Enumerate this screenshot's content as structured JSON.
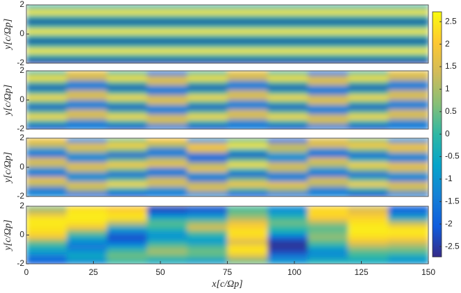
{
  "chart_data": [
    {
      "type": "heatmap",
      "ylabel": "y[c/Ωp]",
      "xlim": [
        0,
        150
      ],
      "ylim": [
        -2,
        2
      ],
      "yticks": [
        -2,
        0,
        2
      ],
      "xbins": [
        0,
        15,
        30,
        45,
        60,
        75,
        90,
        105,
        120,
        135,
        150
      ],
      "ybins": [
        2,
        1.667,
        1.333,
        1,
        0.667,
        0.333,
        0,
        -0.333,
        -0.667,
        -1,
        -1.333,
        -1.667,
        -2
      ],
      "z": [
        [
          0,
          0,
          0,
          0,
          0,
          0,
          0,
          0,
          0,
          0
        ],
        [
          2.5,
          2.5,
          2.5,
          2.5,
          2.5,
          2.5,
          2.5,
          2.5,
          2.5,
          2.5
        ],
        [
          0,
          0,
          0,
          0,
          0,
          0,
          0,
          0,
          0,
          0
        ],
        [
          -2.5,
          -2.5,
          -2.5,
          -2.5,
          -2.5,
          -2.5,
          -2.5,
          -2.5,
          -2.5,
          -2.5
        ],
        [
          0,
          0,
          0,
          0,
          0,
          0,
          0,
          0,
          0,
          0
        ],
        [
          2.5,
          2.5,
          2.5,
          2.5,
          2.5,
          2.5,
          2.5,
          2.5,
          2.5,
          2.5
        ],
        [
          0,
          0,
          0,
          0,
          0,
          0,
          0,
          0,
          0,
          0
        ],
        [
          -2.5,
          -2.5,
          -2.5,
          -2.5,
          -2.5,
          -2.5,
          -2.5,
          -2.5,
          -2.5,
          -2.5
        ],
        [
          0,
          0,
          0,
          0,
          0,
          0,
          0,
          0,
          0,
          0
        ],
        [
          2.5,
          2.5,
          2.5,
          2.5,
          2.5,
          2.5,
          2.5,
          2.5,
          2.5,
          2.5
        ],
        [
          0,
          0,
          0,
          0,
          0,
          0,
          0,
          0,
          0,
          0
        ],
        [
          -2.5,
          -2.5,
          -2.5,
          -2.5,
          -2.5,
          -2.5,
          -2.5,
          -2.5,
          -2.5,
          -2.5
        ]
      ]
    },
    {
      "type": "heatmap",
      "ylabel": "y[c/Ωp]",
      "xlim": [
        0,
        150
      ],
      "ylim": [
        -2,
        2
      ],
      "yticks": [
        -2,
        0,
        2
      ],
      "xbins": [
        0,
        15,
        30,
        45,
        60,
        75,
        90,
        105,
        120,
        135,
        150
      ],
      "ybins": [
        2,
        1.667,
        1.333,
        1,
        0.667,
        0.333,
        0,
        -0.333,
        -0.667,
        -1,
        -1.333,
        -1.667,
        -2
      ],
      "z": [
        [
          0.3,
          1.6,
          0.3,
          -1.4,
          0.3,
          1.6,
          0.3,
          -1.4,
          0.3,
          1.6
        ],
        [
          2.4,
          1.4,
          2.4,
          1.5,
          2.4,
          1.4,
          2.4,
          1.5,
          2.4,
          1.4
        ],
        [
          0.2,
          -1.3,
          0.2,
          1.4,
          0.2,
          -1.3,
          0.2,
          1.4,
          0.2,
          -1.3
        ],
        [
          -2.3,
          -1.5,
          -2.3,
          -1.4,
          -2.3,
          -1.5,
          -2.3,
          -1.4,
          -2.3,
          -1.5
        ],
        [
          0.1,
          1.4,
          0.1,
          -1.5,
          0.1,
          1.4,
          0.1,
          -1.5,
          0.1,
          1.4
        ],
        [
          2.3,
          1.5,
          2.3,
          1.4,
          2.3,
          1.5,
          2.3,
          1.4,
          2.3,
          1.5
        ],
        [
          0.2,
          -1.3,
          0.2,
          1.5,
          0.2,
          -1.3,
          0.2,
          1.5,
          0.2,
          -1.3
        ],
        [
          -2.2,
          -1.4,
          -2.2,
          -1.3,
          -2.2,
          -1.4,
          -2.2,
          -1.3,
          -2.2,
          -1.4
        ],
        [
          0.3,
          1.5,
          0.3,
          -1.4,
          0.3,
          1.5,
          0.3,
          -1.4,
          0.3,
          1.5
        ],
        [
          2.3,
          1.4,
          2.3,
          1.5,
          2.3,
          1.4,
          2.3,
          1.5,
          2.3,
          1.4
        ],
        [
          0,
          -1.2,
          0,
          1.3,
          0,
          -1.2,
          0,
          1.3,
          0,
          -1.2
        ],
        [
          -2.2,
          -1.6,
          -2.2,
          -1.5,
          -2.2,
          -1.6,
          -2.2,
          -1.5,
          -2.2,
          -1.6
        ]
      ]
    },
    {
      "type": "heatmap",
      "ylabel": "y[c/Ωp]",
      "xlim": [
        0,
        150
      ],
      "ylim": [
        -2,
        2
      ],
      "yticks": [
        -2,
        0,
        2
      ],
      "xbins": [
        0,
        15,
        30,
        45,
        60,
        75,
        90,
        105,
        120,
        135,
        150
      ],
      "ybins": [
        2,
        1.667,
        1.333,
        1,
        0.667,
        0.333,
        0,
        -0.333,
        -0.667,
        -1,
        -1.333,
        -1.667,
        -2
      ],
      "z": [
        [
          1.8,
          -1.2,
          0.6,
          1.9,
          -1.0,
          0.5,
          -1.6,
          1.5,
          0.8,
          -1.1
        ],
        [
          1.2,
          1.7,
          2.2,
          1.0,
          1.9,
          2.5,
          1.3,
          1.6,
          2.1,
          1.8
        ],
        [
          -1.0,
          1.2,
          0.5,
          -1.5,
          1.6,
          -0.2,
          1.1,
          -1.2,
          0.4,
          1.5
        ],
        [
          -1.7,
          -1.1,
          -2.1,
          -1.3,
          -1.6,
          -2.2,
          -1.0,
          -1.8,
          -2.0,
          -1.2
        ],
        [
          1.5,
          -1.3,
          0.4,
          1.2,
          -1.7,
          0.3,
          -1.2,
          1.6,
          -0.2,
          -1.4
        ],
        [
          1.3,
          1.6,
          2.1,
          1.7,
          1.2,
          2.4,
          1.5,
          1.1,
          2.2,
          1.7
        ],
        [
          -1.1,
          1.3,
          0.4,
          -1.4,
          1.7,
          -0.1,
          1.2,
          -1.0,
          0.6,
          1.4
        ],
        [
          -1.6,
          -1.2,
          -2.0,
          -1.5,
          -1.1,
          -2.1,
          -1.4,
          -1.7,
          -1.9,
          -1.0
        ],
        [
          1.7,
          -1.1,
          0.2,
          1.3,
          -1.6,
          0.5,
          -1.3,
          1.4,
          0.1,
          -1.5
        ],
        [
          1.2,
          1.6,
          2.3,
          1.5,
          1.3,
          2.0,
          1.8,
          1.2,
          2.2,
          1.6
        ],
        [
          -1.4,
          1.1,
          -0.2,
          -1.0,
          1.5,
          0.3,
          1.0,
          -1.3,
          -0.1,
          1.2
        ],
        [
          -1.3,
          -1.7,
          -2.1,
          -1.6,
          -1.2,
          -2.0,
          -1.5,
          -1.4,
          -2.2,
          -1.3
        ]
      ]
    },
    {
      "type": "heatmap",
      "ylabel": "y[c/Ωp]",
      "xlabel": "x[c/Ωp]",
      "xlim": [
        0,
        150
      ],
      "xticks": [
        0,
        25,
        50,
        75,
        100,
        125,
        150
      ],
      "ylim": [
        -2,
        2
      ],
      "yticks": [
        -2,
        0,
        2
      ],
      "xbins": [
        0,
        15,
        30,
        45,
        60,
        75,
        90,
        105,
        120,
        135,
        150
      ],
      "ybins": [
        2,
        1.667,
        1.333,
        1,
        0.667,
        0.333,
        0,
        -0.333,
        -0.667,
        -1,
        -1.333,
        -1.667,
        -2
      ],
      "z": [
        [
          0.8,
          2.3,
          2.0,
          -2.4,
          -2.2,
          0.2,
          -1.2,
          2.2,
          1.5,
          -2.0
        ],
        [
          1.5,
          2.5,
          2.3,
          -1.8,
          -1.5,
          0.5,
          -0.8,
          2.3,
          1.8,
          -1.5
        ],
        [
          2.4,
          2.5,
          2.4,
          -0.5,
          -0.5,
          1.0,
          0.0,
          2.0,
          2.2,
          -0.5
        ],
        [
          2.5,
          2.4,
          1.2,
          0.3,
          0.8,
          1.8,
          0.5,
          1.0,
          2.4,
          1.2
        ],
        [
          2.4,
          1.8,
          -0.5,
          0.0,
          1.5,
          2.2,
          0.0,
          0.3,
          2.5,
          2.3
        ],
        [
          2.3,
          0.5,
          -1.5,
          -0.8,
          0.3,
          2.4,
          -0.5,
          0.5,
          2.5,
          2.5
        ],
        [
          1.8,
          -0.5,
          -2.2,
          -1.0,
          -0.5,
          2.2,
          -1.8,
          0.8,
          2.3,
          2.2
        ],
        [
          0.5,
          -1.2,
          -1.8,
          -0.3,
          -0.8,
          1.5,
          -2.5,
          0.3,
          1.8,
          1.5
        ],
        [
          -0.3,
          -1.5,
          -0.8,
          0.5,
          0.2,
          2.3,
          -2.6,
          -0.5,
          1.0,
          0.8
        ],
        [
          -0.8,
          -1.0,
          0.2,
          1.0,
          0.5,
          2.4,
          -2.3,
          -1.2,
          0.3,
          0.3
        ],
        [
          -1.5,
          -0.5,
          0.5,
          0.3,
          0.2,
          1.5,
          -1.5,
          -1.0,
          0.0,
          -0.5
        ],
        [
          -2.0,
          -1.2,
          0.0,
          -0.5,
          -0.8,
          0.5,
          -1.0,
          -0.3,
          -0.5,
          -1.0
        ]
      ]
    }
  ],
  "colorbar": {
    "clim": [
      -2.73,
      2.72
    ],
    "ticks": [
      -2.5,
      -2,
      -1.5,
      -1,
      -0.5,
      0,
      0.5,
      1,
      1.5,
      2,
      2.5
    ],
    "colormap": [
      "#352a87",
      "#0f5cdd",
      "#1481d6",
      "#06a4ca",
      "#2eb7a4",
      "#87bf77",
      "#d1bb59",
      "#fec832",
      "#f9fb0e"
    ]
  }
}
